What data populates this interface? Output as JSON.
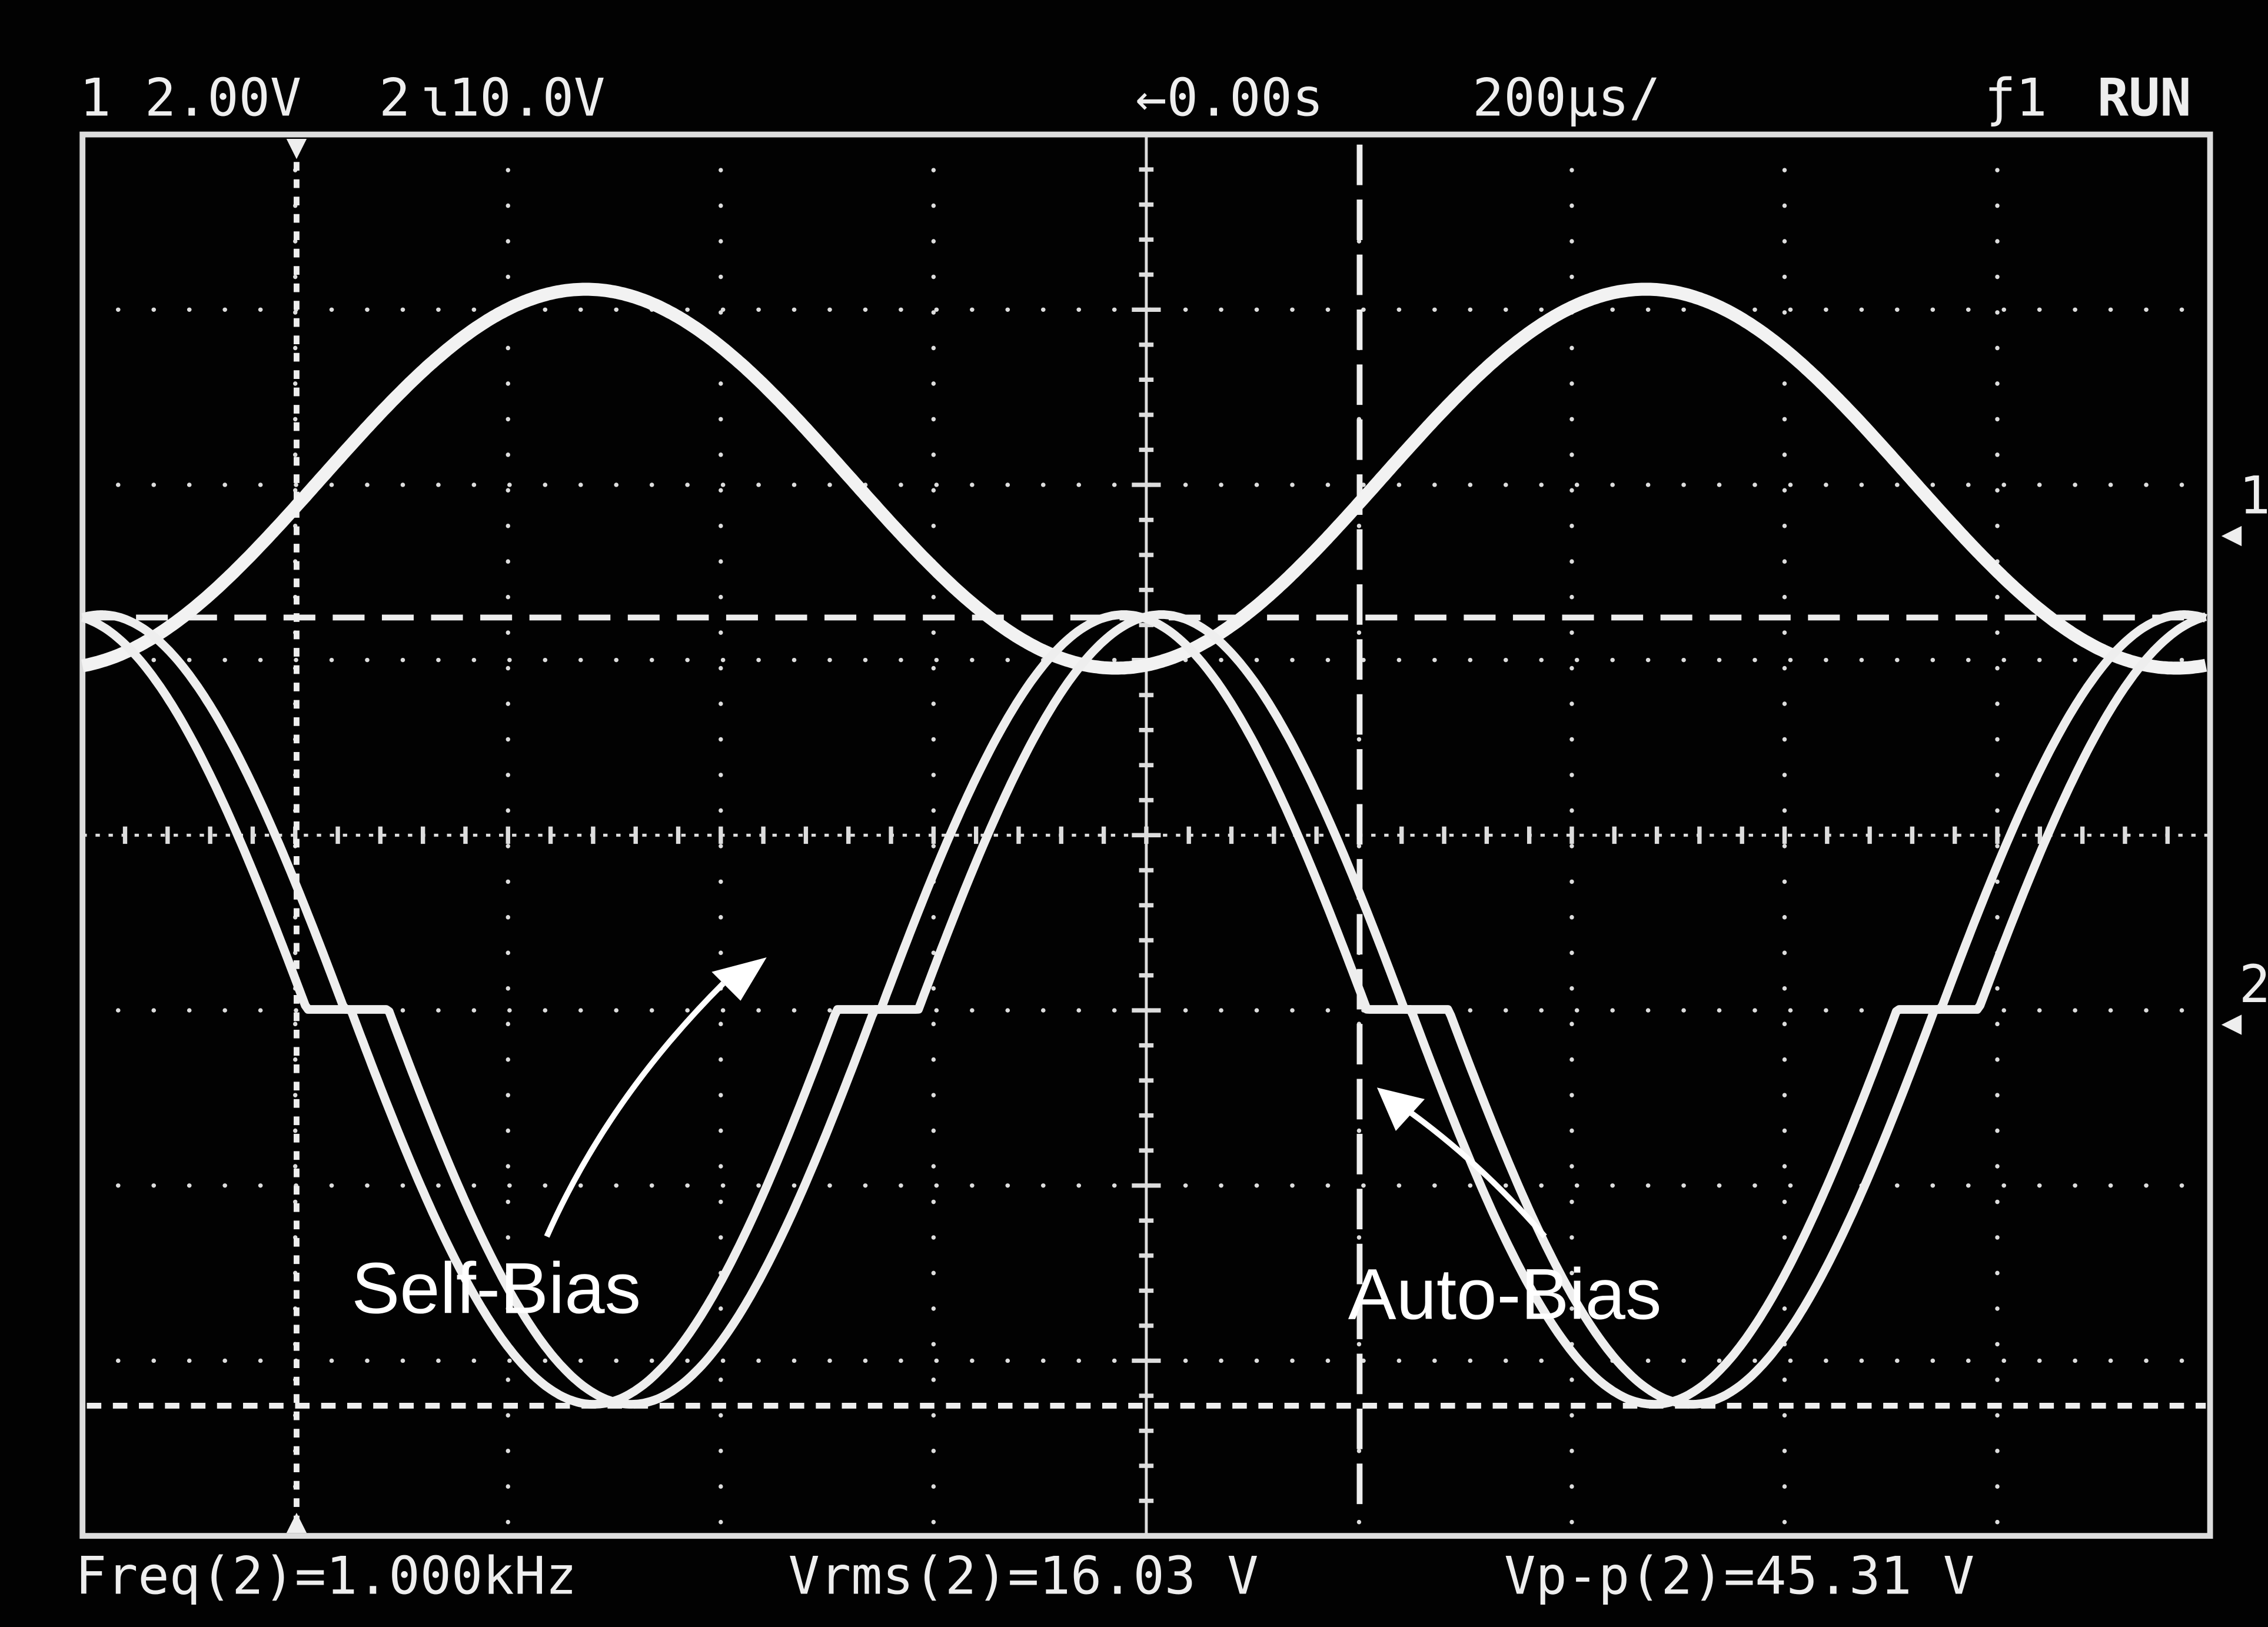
{
  "header": {
    "ch1_label": "1",
    "ch1_scale": "2.00V",
    "ch2_label": "2",
    "ch2_scale": "10.0V",
    "time_offset": "←0.00s",
    "time_scale": "200µs/",
    "trigger": "ƒ1",
    "status": "RUN"
  },
  "markers": {
    "ch1": "1",
    "ch2": "2"
  },
  "annotations": {
    "self_bias": "Self-Bias",
    "auto_bias": "Auto-Bias"
  },
  "measurements": [
    "Freq(2)=1.000kHz",
    "Vrms(2)=16.03 V",
    "Vp-p(2)=45.31 V"
  ]
}
